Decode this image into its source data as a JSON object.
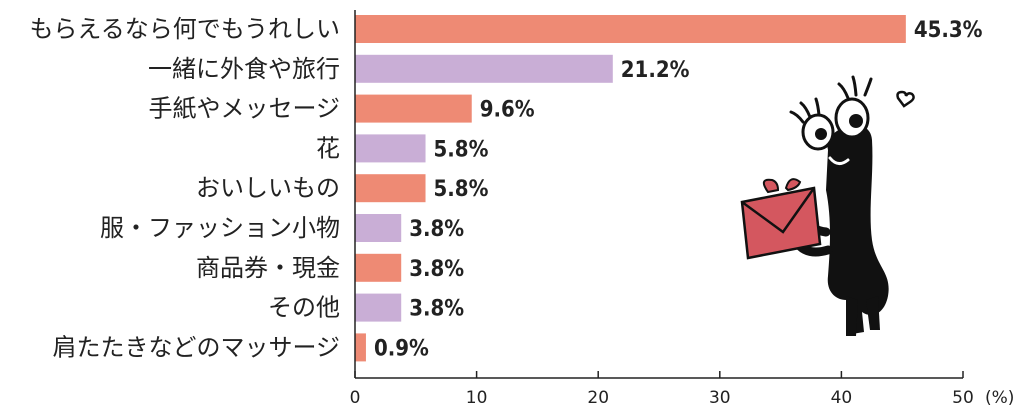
{
  "chart_data": {
    "type": "bar",
    "orientation": "horizontal",
    "categories": [
      "もらえるなら何でもうれしい",
      "一緒に外食や旅行",
      "手紙やメッセージ",
      "花",
      "おいしいもの",
      "服・ファッション小物",
      "商品券・現金",
      "その他",
      "肩たたきなどのマッサージ"
    ],
    "values": [
      45.3,
      21.2,
      9.6,
      5.8,
      5.8,
      3.8,
      3.8,
      3.8,
      0.9
    ],
    "value_labels": [
      "45.3%",
      "21.2%",
      "9.6%",
      "5.8%",
      "5.8%",
      "3.8%",
      "3.8%",
      "3.8%",
      "0.9%"
    ],
    "xlim": [
      0,
      50
    ],
    "xticks": [
      "0",
      "10",
      "20",
      "30",
      "40",
      "50"
    ],
    "unit": "(%)",
    "grid": false,
    "legend": "none",
    "bar_colors": [
      "#EE8A74",
      "#C9AED6"
    ]
  },
  "illustration": {
    "icon": "character-holding-gift-icon",
    "body_color": "#111111",
    "gift_color": "#D4575F"
  }
}
